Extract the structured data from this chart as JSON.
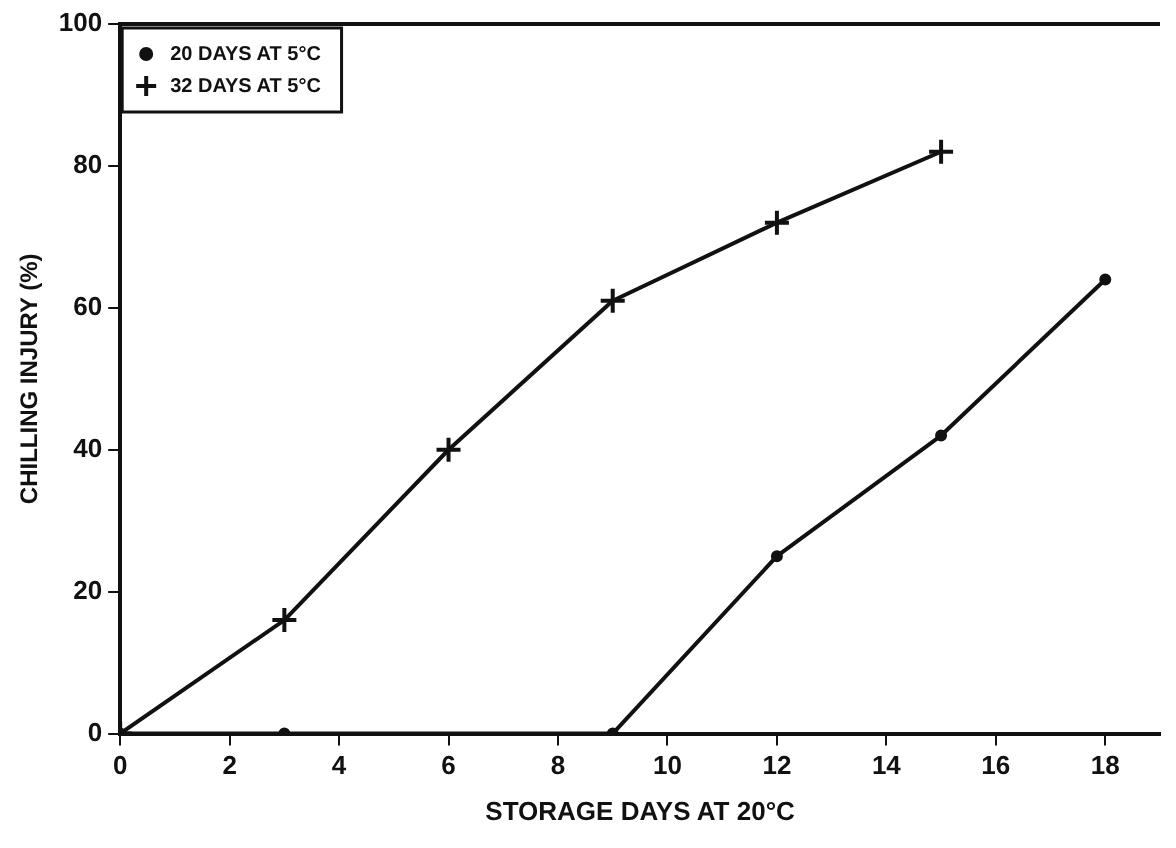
{
  "chart_data": {
    "type": "line",
    "xlabel": "STORAGE DAYS AT 20°C",
    "ylabel": "CHILLING INJURY (%)",
    "xlim": [
      0,
      19
    ],
    "xticks": [
      0,
      2,
      4,
      6,
      8,
      10,
      12,
      14,
      16,
      18
    ],
    "ylim": [
      0,
      100
    ],
    "yticks": [
      0,
      20,
      40,
      60,
      80,
      100
    ],
    "grid": false,
    "legend": "top left",
    "line_style": "solid",
    "series": [
      {
        "name": "20 DAYS AT 5°C",
        "color": "#111111",
        "marker": "circle",
        "x": [
          0,
          3,
          9,
          12,
          15,
          18
        ],
        "values": [
          0,
          0,
          0,
          25,
          42,
          64
        ]
      },
      {
        "name": "32 DAYS AT 5°C",
        "color": "#111111",
        "marker": "cross",
        "x": [
          0,
          3,
          6,
          9,
          12,
          15
        ],
        "values": [
          0,
          16,
          40,
          61,
          72,
          82
        ]
      }
    ]
  }
}
